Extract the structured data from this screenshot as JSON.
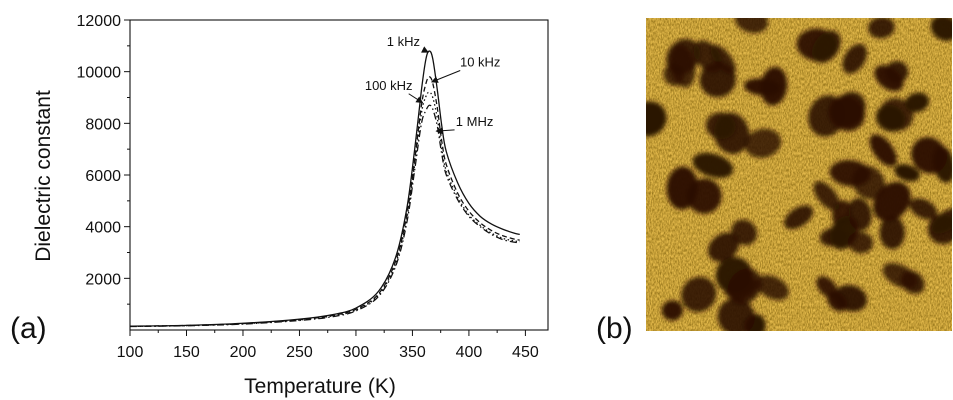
{
  "figure": {
    "panel_a_label": "(a)",
    "panel_b_label": "(b)"
  },
  "chart_data": {
    "type": "line",
    "title": "",
    "xlabel": "Temperature (K)",
    "ylabel": "Dielectric constant",
    "xlim": [
      100,
      470
    ],
    "ylim": [
      0,
      12000
    ],
    "xticks": [
      100,
      150,
      200,
      250,
      300,
      350,
      400,
      450
    ],
    "yticks": [
      2000,
      4000,
      6000,
      8000,
      10000,
      12000
    ],
    "grid": false,
    "legend": "none",
    "series": [
      {
        "name": "1 kHz",
        "style": "solid",
        "x": [
          100,
          150,
          200,
          250,
          280,
          300,
          320,
          335,
          345,
          352,
          358,
          362,
          365,
          368,
          372,
          376,
          380,
          390,
          400,
          410,
          420,
          430,
          440,
          445
        ],
        "y": [
          150,
          180,
          260,
          420,
          600,
          850,
          1500,
          2800,
          4700,
          7000,
          9300,
          10500,
          10800,
          10500,
          9300,
          7900,
          6900,
          5700,
          4900,
          4400,
          4100,
          3900,
          3750,
          3700
        ]
      },
      {
        "name": "10 kHz",
        "style": "dashed",
        "x": [
          100,
          150,
          200,
          250,
          280,
          300,
          320,
          335,
          345,
          352,
          358,
          362,
          365,
          368,
          372,
          376,
          380,
          390,
          400,
          410,
          420,
          430,
          440,
          445
        ],
        "y": [
          145,
          175,
          250,
          400,
          570,
          800,
          1400,
          2650,
          4450,
          6600,
          8700,
          9550,
          9800,
          9550,
          8600,
          7300,
          6400,
          5300,
          4600,
          4150,
          3850,
          3650,
          3520,
          3480
        ]
      },
      {
        "name": "100 kHz",
        "style": "dotted",
        "x": [
          100,
          150,
          200,
          250,
          280,
          300,
          320,
          335,
          345,
          352,
          358,
          362,
          365,
          368,
          372,
          376,
          380,
          390,
          400,
          410,
          420,
          430,
          440,
          445
        ],
        "y": [
          140,
          170,
          240,
          390,
          550,
          770,
          1350,
          2550,
          4300,
          6400,
          8400,
          9050,
          9200,
          9000,
          8200,
          7000,
          6150,
          5150,
          4450,
          4050,
          3750,
          3550,
          3450,
          3420
        ]
      },
      {
        "name": "1 MHz",
        "style": "dashdot",
        "x": [
          100,
          150,
          200,
          250,
          280,
          300,
          320,
          335,
          345,
          352,
          358,
          362,
          365,
          368,
          372,
          376,
          380,
          390,
          400,
          410,
          420,
          430,
          440,
          445
        ],
        "y": [
          135,
          165,
          230,
          370,
          520,
          740,
          1300,
          2450,
          4150,
          6200,
          8000,
          8500,
          8700,
          8550,
          7900,
          6800,
          6000,
          5050,
          4400,
          4000,
          3700,
          3500,
          3400,
          3380
        ]
      }
    ],
    "annotations": [
      {
        "text": "1 kHz",
        "series": "1 kHz",
        "text_at": [
          342,
          11000
        ],
        "point_at": [
          364,
          10750
        ]
      },
      {
        "text": "10 kHz",
        "series": "10 kHz",
        "text_at": [
          410,
          10200
        ],
        "point_at": [
          367,
          9600
        ]
      },
      {
        "text": "100 kHz",
        "series": "100 kHz",
        "text_at": [
          329,
          9300
        ],
        "point_at": [
          359,
          8800
        ]
      },
      {
        "text": "1 MHz",
        "series": "1 MHz",
        "text_at": [
          405,
          7900
        ],
        "point_at": [
          371,
          7700
        ]
      }
    ]
  }
}
